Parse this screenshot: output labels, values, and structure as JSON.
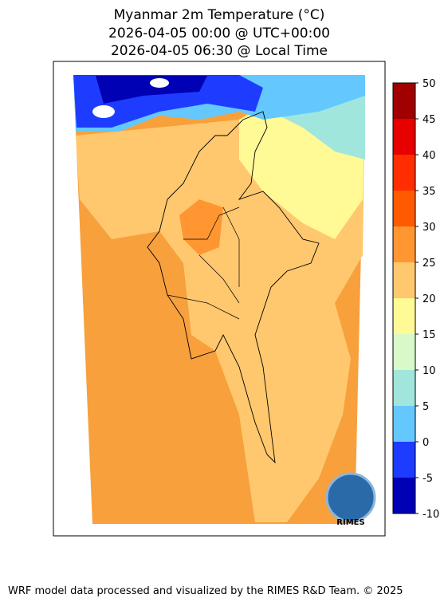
{
  "map": {
    "title": [
      "Myanmar 2m Temperature (°C)",
      "2026-04-05 00:00 @ UTC+00:00",
      "2026-04-05 06:30 @ Local Time"
    ],
    "colorbar": {
      "ticks": [
        -10,
        -5,
        0,
        5,
        10,
        15,
        20,
        25,
        30,
        35,
        40,
        45,
        50
      ],
      "colors": [
        "#0000b4",
        "#1e3cff",
        "#64c8ff",
        "#a0e6dc",
        "#d8fac8",
        "#fffa96",
        "#ffc86e",
        "#ff9632",
        "#ff5a00",
        "#ff2d00",
        "#e60000",
        "#a00000"
      ]
    },
    "logo": "RIMES"
  },
  "footer": "WRF model data processed and visualized by the RIMES R&D Team. © 2025"
}
